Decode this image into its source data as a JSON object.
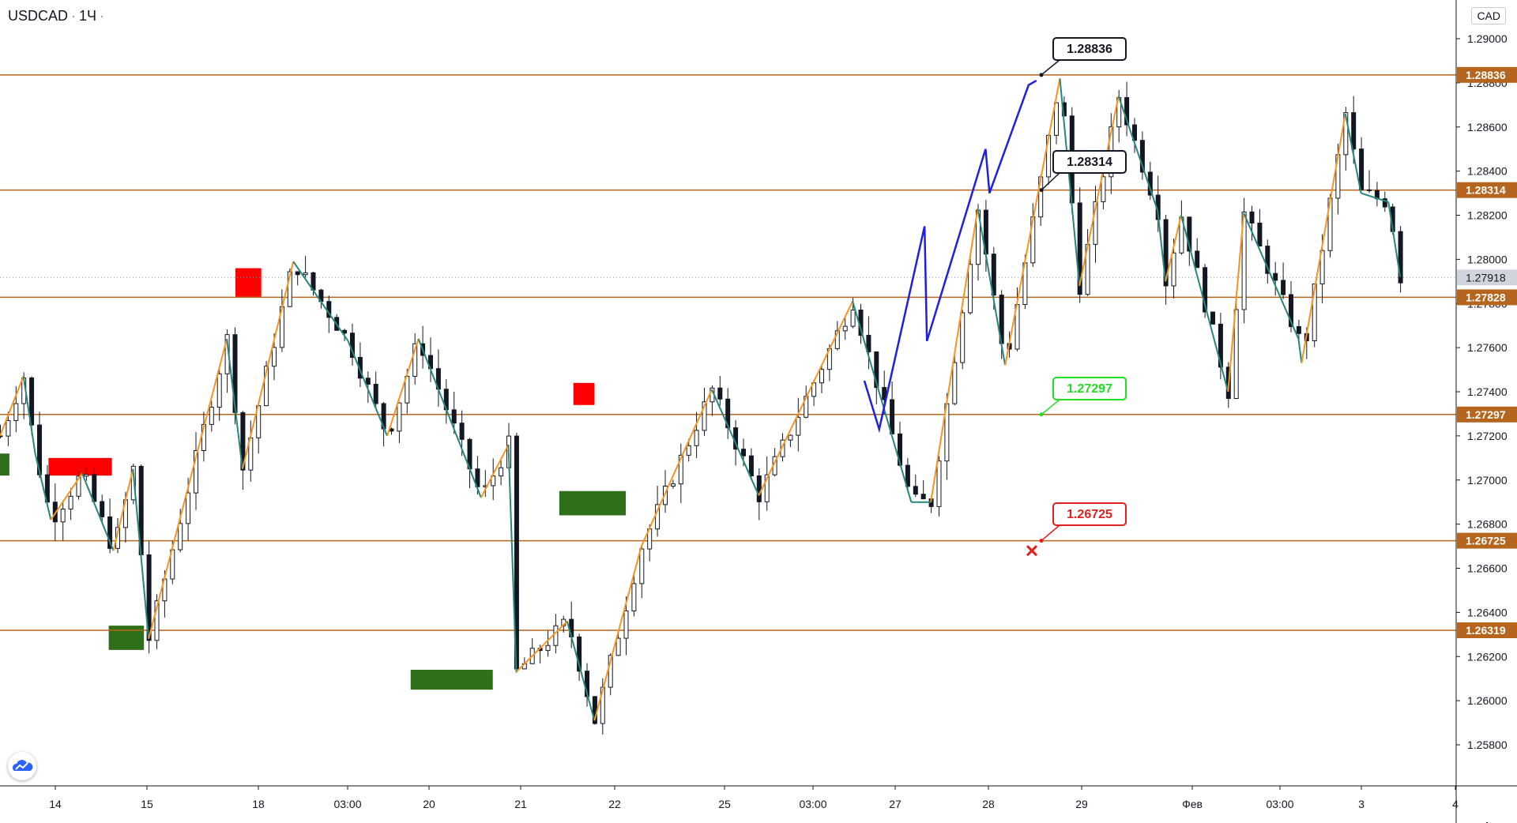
{
  "header": {
    "symbol": "USDCAD",
    "timeframe": "1Ч",
    "currency": "CAD"
  },
  "colors": {
    "level_line": "#b5651d",
    "level_label_bg": "#b5651d",
    "up_candle": "#131722",
    "zigzag_orange": "#f7931e",
    "zigzag_teal": "#26867a",
    "projection_blue": "#1f1fe0",
    "supply_zone": "#ff0000",
    "demand_zone": "#2f6f1a",
    "target_green": "#22dd22",
    "stop_red": "#e02020"
  },
  "chart_data": {
    "type": "candlestick",
    "symbol": "USDCAD",
    "interval": "1Ч",
    "ylim": [
      1.2565,
      1.2905
    ],
    "y_ticks": [
      "1.29000",
      "1.28800",
      "1.28600",
      "1.28400",
      "1.28200",
      "1.28000",
      "1.27800",
      "1.27600",
      "1.27400",
      "1.27200",
      "1.27000",
      "1.26800",
      "1.26600",
      "1.26400",
      "1.26200",
      "1.26000",
      "1.25800"
    ],
    "x_ticks": [
      "14",
      "15",
      "18",
      "03:00",
      "20",
      "21",
      "22",
      "25",
      "03:00",
      "27",
      "28",
      "29",
      "Фев",
      "03:00",
      "3",
      "4"
    ],
    "current_price": {
      "value": 1.27918,
      "label": "1.27918"
    },
    "levels": [
      {
        "value": 1.28836,
        "label": "1.28836"
      },
      {
        "value": 1.28314,
        "label": "1.28314"
      },
      {
        "value": 1.27828,
        "label": "1.27828"
      },
      {
        "value": 1.27297,
        "label": "1.27297"
      },
      {
        "value": 1.26725,
        "label": "1.26725"
      },
      {
        "value": 1.26319,
        "label": "1.26319"
      }
    ],
    "callouts": [
      {
        "label": "1.28836",
        "kind": "neutral"
      },
      {
        "label": "1.28314",
        "kind": "neutral"
      },
      {
        "label": "1.27297",
        "kind": "target"
      },
      {
        "label": "1.26725",
        "kind": "stop"
      }
    ],
    "price_path": [
      [
        0,
        1.272
      ],
      [
        3,
        1.2747
      ],
      [
        4.5,
        1.2712
      ],
      [
        6.5,
        1.2682
      ],
      [
        10.5,
        1.2703
      ],
      [
        14.5,
        1.2668
      ],
      [
        17,
        1.2705
      ],
      [
        19,
        1.2628
      ],
      [
        29,
        1.2764
      ],
      [
        31,
        1.2705
      ],
      [
        37.5,
        1.2799
      ],
      [
        44.5,
        1.2763
      ],
      [
        49.5,
        1.272
      ],
      [
        53.5,
        1.2764
      ],
      [
        61.5,
        1.2692
      ],
      [
        65,
        1.2716
      ],
      [
        66,
        1.2613
      ],
      [
        72.5,
        1.2636
      ],
      [
        76,
        1.2591
      ],
      [
        82,
        1.267
      ],
      [
        91,
        1.2741
      ],
      [
        97,
        1.2693
      ],
      [
        109,
        1.2781
      ],
      [
        116.5,
        1.269
      ],
      [
        119,
        1.269
      ],
      [
        125,
        1.2823
      ],
      [
        128.5,
        1.2752
      ],
      [
        135.5,
        1.2882
      ],
      [
        138,
        1.2788
      ],
      [
        143,
        1.2874
      ],
      [
        148,
        1.2822
      ],
      [
        149,
        1.279
      ],
      [
        151,
        1.282
      ],
      [
        157,
        1.274
      ],
      [
        159,
        1.2821
      ],
      [
        166,
        1.2764
      ],
      [
        166.4,
        1.2753
      ],
      [
        172,
        1.2866
      ],
      [
        174,
        1.283
      ],
      [
        177.5,
        1.2826
      ],
      [
        179,
        1.2792
      ]
    ]
  }
}
